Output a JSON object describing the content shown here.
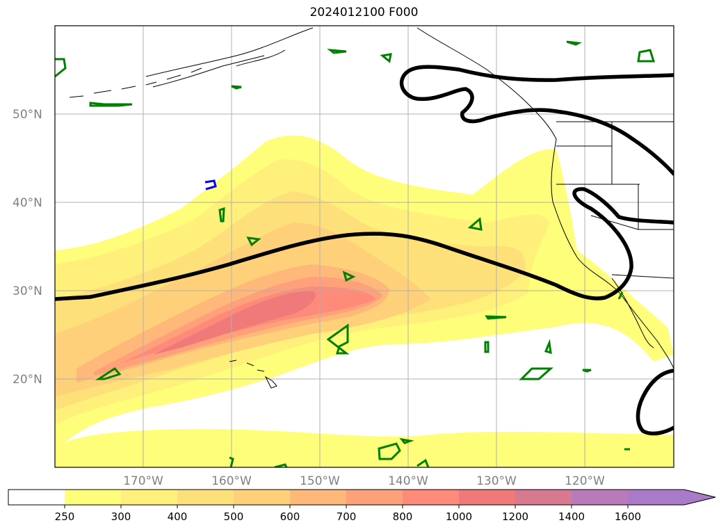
{
  "map": {
    "title": "2024012100 F000",
    "lat_labels": [
      {
        "lat": 50,
        "text": "50°N"
      },
      {
        "lat": 40,
        "text": "40°N"
      },
      {
        "lat": 30,
        "text": "30°N"
      },
      {
        "lat": 20,
        "text": "20°N"
      }
    ],
    "lon_labels": [
      {
        "lon": -170,
        "text": "170°W"
      },
      {
        "lon": -160,
        "text": "160°W"
      },
      {
        "lon": -150,
        "text": "150°W"
      },
      {
        "lon": -140,
        "text": "140°W"
      },
      {
        "lon": -130,
        "text": "130°W"
      },
      {
        "lon": -120,
        "text": "120°W"
      }
    ],
    "extent": {
      "lon_min": -180,
      "lon_max": -110,
      "lat_min": 10,
      "lat_max": 60
    },
    "gridlines": true
  },
  "colorbar": {
    "ticks": [
      "250",
      "300",
      "400",
      "500",
      "600",
      "700",
      "800",
      "1000",
      "1200",
      "1400",
      "1600"
    ],
    "colors": [
      "#ffffff",
      "#fefe7a",
      "#fef07a",
      "#fee07a",
      "#fed07a",
      "#feb97a",
      "#fea07a",
      "#fe8a7a",
      "#f07a7a",
      "#d77a90",
      "#b87ab8",
      "#a87ac8"
    ],
    "extend": "max"
  },
  "colors": {
    "jet_contour": "#000000",
    "green_contour": "#008000",
    "blue_contour": "#0000ff",
    "coastline": "#000000",
    "gridline": "#b0b0b0"
  }
}
